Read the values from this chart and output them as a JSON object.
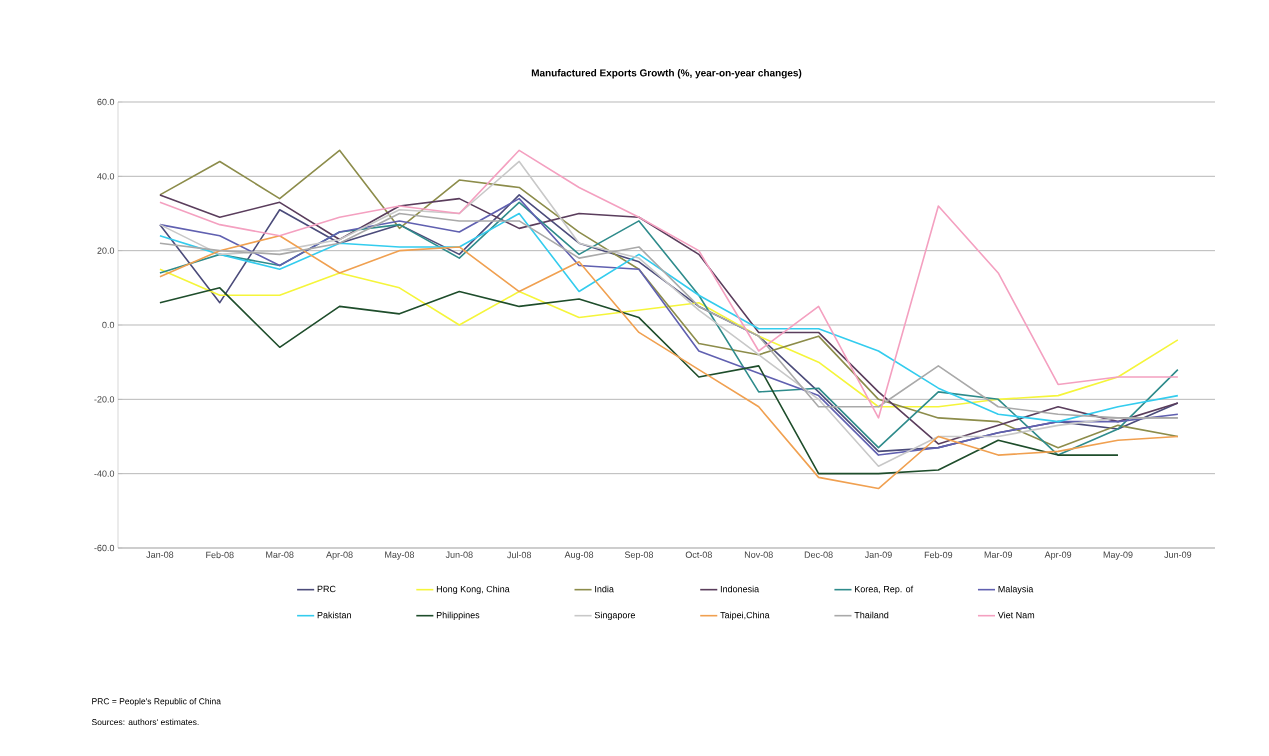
{
  "chart_data": {
    "type": "line",
    "title": "Manufactured Exports Growth (%, year-on-year changes)",
    "categories": [
      "Jan-08",
      "Feb-08",
      "Mar-08",
      "Apr-08",
      "May-08",
      "Jun-08",
      "Jul-08",
      "Aug-08",
      "Sep-08",
      "Oct-08",
      "Nov-08",
      "Dec-08",
      "Jan-09",
      "Feb-09",
      "Mar-09",
      "Apr-09",
      "May-09",
      "Jun-09"
    ],
    "series": [
      {
        "name": "PRC",
        "color": "#4b4b7a",
        "values": [
          27,
          6,
          31,
          22,
          27,
          19,
          35,
          22,
          17,
          5,
          -3,
          -18,
          -34,
          -33,
          -29,
          -26,
          -28,
          -21
        ]
      },
      {
        "name": "Hong Kong, China",
        "color": "#f5f53a",
        "values": [
          15,
          8,
          8,
          14,
          10,
          0,
          9,
          2,
          4,
          6,
          -3,
          -10,
          -22,
          -22,
          -20,
          -19,
          -14,
          -4
        ]
      },
      {
        "name": "India",
        "color": "#8c8c4a",
        "values": [
          35,
          44,
          34,
          47,
          26,
          39,
          37,
          25,
          15,
          -5,
          -8,
          -3,
          -20,
          -25,
          -26,
          -33,
          -27,
          -30
        ]
      },
      {
        "name": "Indonesia",
        "color": "#5a3d5c",
        "values": [
          35,
          29,
          33,
          23,
          32,
          34,
          26,
          30,
          29,
          19,
          -2,
          -2,
          -18,
          -32,
          -27,
          -22,
          -26,
          -21
        ]
      },
      {
        "name": "Korea, Rep. of",
        "color": "#2e8b8b",
        "values": [
          14,
          19,
          16,
          25,
          27,
          18,
          33,
          19,
          28,
          8,
          -18,
          -17,
          -33,
          -18,
          -20,
          -35,
          -28,
          -12
        ]
      },
      {
        "name": "Malaysia",
        "color": "#6060b0",
        "values": [
          27,
          24,
          16,
          25,
          28,
          25,
          34,
          16,
          15,
          -7,
          -13,
          -19,
          -35,
          -33,
          -29,
          -26,
          -26,
          -24
        ]
      },
      {
        "name": "Pakistan",
        "color": "#33ccee",
        "values": [
          24,
          19,
          15,
          22,
          21,
          21,
          30,
          9,
          19,
          8,
          -1,
          -1,
          -7,
          -17,
          -24,
          -26,
          -22,
          -19
        ]
      },
      {
        "name": "Philippines",
        "color": "#1e4d2b",
        "values": [
          6,
          10,
          -6,
          5,
          3,
          9,
          5,
          7,
          2,
          -14,
          -11,
          -40,
          -40,
          -39,
          -31,
          -35,
          -35,
          null
        ]
      },
      {
        "name": "Singapore",
        "color": "#c8c8c8",
        "values": [
          27,
          19,
          20,
          23,
          31,
          30,
          44,
          22,
          18,
          4,
          -8,
          -20,
          -38,
          -30,
          -30,
          -27,
          -25,
          -25
        ]
      },
      {
        "name": "Taipei,China",
        "color": "#f0a050",
        "values": [
          13,
          20,
          24,
          14,
          20,
          21,
          9,
          17,
          -2,
          -12,
          -22,
          -41,
          -44,
          -30,
          -35,
          -34,
          -31,
          -30
        ]
      },
      {
        "name": "Thailand",
        "color": "#a9a9a9",
        "values": [
          22,
          20,
          19,
          22,
          30,
          28,
          28,
          18,
          21,
          5,
          -3,
          -22,
          -22,
          -11,
          -22,
          -24,
          -25,
          -25
        ]
      },
      {
        "name": "Viet Nam",
        "color": "#f4a0c0",
        "values": [
          33,
          27,
          24,
          29,
          32,
          30,
          47,
          37,
          29,
          20,
          -7,
          5,
          -25,
          32,
          14,
          -16,
          -14,
          -14
        ]
      }
    ],
    "ylim": [
      -60,
      60
    ],
    "yticks": [
      {
        "value": -60,
        "label": "-60.0"
      },
      {
        "value": -40,
        "label": "-40.0"
      },
      {
        "value": -20,
        "label": "-20.0"
      },
      {
        "value": 0,
        "label": "0.0"
      },
      {
        "value": 20,
        "label": "20.0"
      },
      {
        "value": 40,
        "label": "40.0"
      },
      {
        "value": 60,
        "label": "60.0"
      }
    ],
    "grid": "y",
    "legend": "bottom",
    "marker": "none",
    "line_style": "solid",
    "annotations": [
      "PRC = People's Republic of China",
      "Sources: authors' estimates."
    ]
  }
}
